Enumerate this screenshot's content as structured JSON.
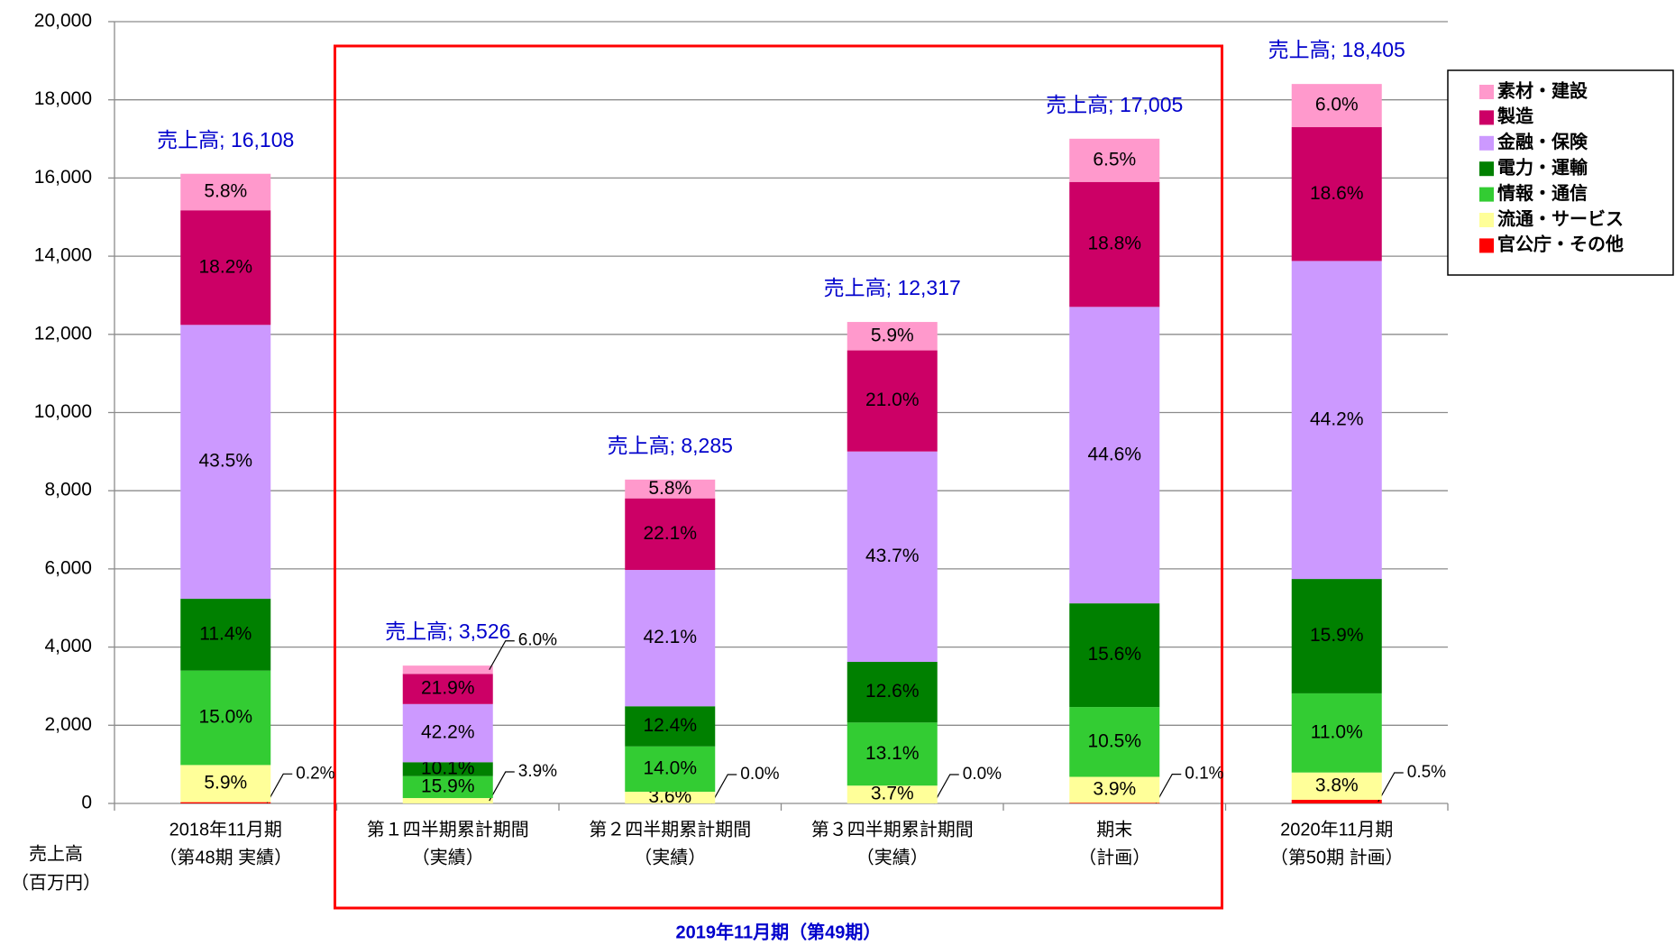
{
  "chart_data": {
    "type": "stacked_bar",
    "categories": [
      [
        "2018年11月期",
        "（第48期 実績）"
      ],
      [
        "第１四半期累計期間",
        "（実績）"
      ],
      [
        "第２四半期累計期間",
        "（実績）"
      ],
      [
        "第３四半期累計期間",
        "（実績）"
      ],
      [
        "期末",
        "（計画）"
      ],
      [
        "2020年11月期",
        "（第50期 計画）"
      ]
    ],
    "series": [
      {
        "name": "官公庁・その他",
        "color": "#ff0000",
        "values": [
          0.2,
          0,
          0.0,
          0.0,
          0.1,
          0.5
        ],
        "value_labels": [
          "0.2%",
          null,
          "0.0%",
          "0.0%",
          "0.1%",
          "0.5%"
        ]
      },
      {
        "name": "流通・サービス",
        "color": "#ffff99",
        "values": [
          5.9,
          3.9,
          3.6,
          3.7,
          3.9,
          3.8
        ],
        "value_labels": [
          "5.9%",
          "3.9%",
          "3.6%",
          "3.7%",
          "3.9%",
          "3.8%"
        ]
      },
      {
        "name": "情報・通信",
        "color": "#33cc33",
        "values": [
          15.0,
          15.9,
          14.0,
          13.1,
          10.5,
          11.0
        ],
        "value_labels": [
          "15.0%",
          "15.9%",
          "14.0%",
          "13.1%",
          "10.5%",
          "11.0%"
        ]
      },
      {
        "name": "電力・運輸",
        "color": "#008000",
        "values": [
          11.4,
          10.1,
          12.4,
          12.6,
          15.6,
          15.9
        ],
        "value_labels": [
          "11.4%",
          "10.1%",
          "12.4%",
          "12.6%",
          "15.6%",
          "15.9%"
        ]
      },
      {
        "name": "金融・保険",
        "color": "#cc99ff",
        "values": [
          43.5,
          42.2,
          42.1,
          43.7,
          44.6,
          44.2
        ],
        "value_labels": [
          "43.5%",
          "42.2%",
          "42.1%",
          "43.7%",
          "44.6%",
          "44.2%"
        ]
      },
      {
        "name": "製造",
        "color": "#cc0066",
        "values": [
          18.2,
          21.9,
          22.1,
          21.0,
          18.8,
          18.6
        ],
        "value_labels": [
          "18.2%",
          "21.9%",
          "22.1%",
          "21.0%",
          "18.8%",
          "18.6%"
        ]
      },
      {
        "name": "素材・建設",
        "color": "#ff99cc",
        "values": [
          5.8,
          6.0,
          5.8,
          5.9,
          6.5,
          6.0
        ],
        "value_labels": [
          "5.8%",
          "6.0%",
          "5.8%",
          "5.9%",
          "6.5%",
          "6.0%"
        ]
      }
    ],
    "totals": {
      "name": "売上高",
      "color": "#0000cc",
      "values": [
        16108,
        3526,
        8285,
        12317,
        17005,
        18405
      ],
      "value_labels": [
        "売上高; 16,108",
        "売上高; 3,526",
        "売上高; 8,285",
        "売上高; 12,317",
        "売上高; 17,005",
        "売上高; 18,405"
      ]
    },
    "ylim": [
      0,
      20000
    ],
    "yticks": [
      0,
      {
        "value": 2000,
        "label": "2,000"
      },
      {
        "value": 4000,
        "label": "4,000"
      },
      {
        "value": 6000,
        "label": "6,000"
      },
      {
        "value": 8000,
        "label": "8,000"
      },
      {
        "value": 10000,
        "label": "10,000"
      },
      {
        "value": 12000,
        "label": "12,000"
      },
      {
        "value": 14000,
        "label": "14,000"
      },
      {
        "value": 16000,
        "label": "16,000"
      },
      {
        "value": 18000,
        "label": "18,000"
      },
      {
        "value": 20000,
        "label": "20,000"
      }
    ],
    "grid": true,
    "y_label": [
      "売上高",
      "（百万円）"
    ],
    "bracket": {
      "label": "2019年11月期（第49期）",
      "color": "#ff0000",
      "label_color": "#0000cc"
    },
    "legend": "upper right"
  }
}
